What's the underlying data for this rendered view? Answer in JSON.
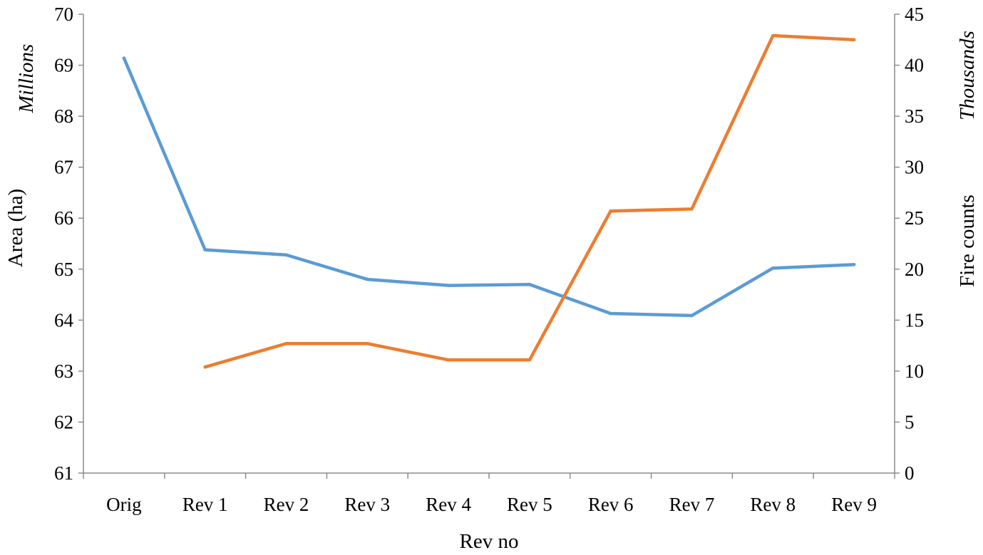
{
  "chart_data": {
    "type": "line",
    "categories": [
      "Orig",
      "Rev 1",
      "Rev 2",
      "Rev 3",
      "Rev 4",
      "Rev 5",
      "Rev 6",
      "Rev 7",
      "Rev 8",
      "Rev 9"
    ],
    "xlabel": "Rev no",
    "ylabel_left": "Area (ha)",
    "ylabel_left_unit": "Millions",
    "ylabel_right": "Fire counts",
    "ylabel_right_unit": "Thousands",
    "ylim_left": [
      61,
      70
    ],
    "yticks_left": [
      61,
      62,
      63,
      64,
      65,
      66,
      67,
      68,
      69,
      70
    ],
    "ylim_right": [
      0,
      45
    ],
    "yticks_right": [
      0,
      5,
      10,
      15,
      20,
      25,
      30,
      35,
      40,
      45
    ],
    "grid": false,
    "series": [
      {
        "axis": "left",
        "color": "#5b9bd5",
        "values": [
          69.14,
          65.38,
          65.28,
          64.8,
          64.68,
          64.7,
          64.13,
          64.09,
          65.02,
          65.09
        ]
      },
      {
        "axis": "right",
        "color": "#ed7d31",
        "values": [
          null,
          10.4,
          12.7,
          12.7,
          11.1,
          11.1,
          25.7,
          25.9,
          42.9,
          42.5
        ]
      }
    ]
  }
}
